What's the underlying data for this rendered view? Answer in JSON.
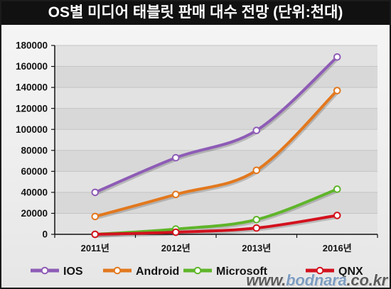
{
  "chart_data": {
    "type": "line",
    "title": "OS별 미디어 태블릿 판매 대수 전망 (단위:천대)",
    "xlabel": "",
    "ylabel": "",
    "categories": [
      "2011년",
      "2012년",
      "2013년",
      "2016년"
    ],
    "ylim": [
      0,
      180000
    ],
    "yticks": [
      0,
      20000,
      40000,
      60000,
      80000,
      100000,
      120000,
      140000,
      160000,
      180000
    ],
    "grid": true,
    "smooth": true,
    "legend": "bottom",
    "series": [
      {
        "name": "IOS",
        "color": "#8e5cb6",
        "values": [
          40000,
          73000,
          99000,
          169000
        ]
      },
      {
        "name": "Android",
        "color": "#e2781e",
        "values": [
          17000,
          38000,
          61000,
          137000
        ]
      },
      {
        "name": "Microsoft",
        "color": "#5fb52a",
        "values": [
          0,
          5000,
          14000,
          43000
        ]
      },
      {
        "name": "QNX",
        "color": "#d3121e",
        "values": [
          0,
          2000,
          6000,
          18000
        ]
      }
    ]
  },
  "watermark": {
    "prefix": "www.",
    "name": "bodnara",
    "suffix": ".co.kr"
  }
}
